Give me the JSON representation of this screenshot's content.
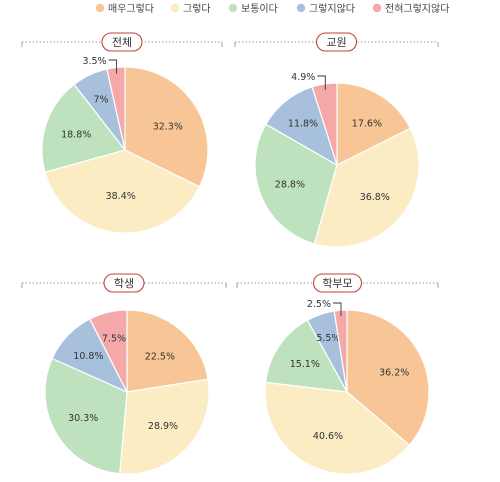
{
  "legend": [
    {
      "label": "매우그렇다",
      "color": "#f8c596"
    },
    {
      "label": "그렇다",
      "color": "#fcecc4"
    },
    {
      "label": "보통이다",
      "color": "#bee2bd"
    },
    {
      "label": "그렇지않다",
      "color": "#a7c0db"
    },
    {
      "label": "전혀그렇지않다",
      "color": "#f4a8a8"
    }
  ],
  "chart_data": [
    {
      "type": "pie",
      "title": "전체",
      "categories": [
        "매우그렇다",
        "그렇다",
        "보통이다",
        "그렇지않다",
        "전혀그렇지않다"
      ],
      "values": [
        32.3,
        38.4,
        18.8,
        7.0,
        3.5
      ],
      "labels": [
        "32.3%",
        "38.4%",
        "18.8%",
        "7%",
        "3.5%"
      ],
      "start_angle_deg": 0,
      "direction": "clockwise"
    },
    {
      "type": "pie",
      "title": "교원",
      "categories": [
        "매우그렇다",
        "그렇다",
        "보통이다",
        "그렇지않다",
        "전혀그렇지않다"
      ],
      "values": [
        17.6,
        36.8,
        28.8,
        11.8,
        4.9
      ],
      "labels": [
        "17.6%",
        "36.8%",
        "28.8%",
        "11.8%",
        "4.9%"
      ],
      "start_angle_deg": 0,
      "direction": "clockwise"
    },
    {
      "type": "pie",
      "title": "학생",
      "categories": [
        "매우그렇다",
        "그렇다",
        "보통이다",
        "그렇지않다",
        "전혀그렇지않다"
      ],
      "values": [
        22.5,
        28.9,
        30.3,
        10.8,
        7.5
      ],
      "labels": [
        "22.5%",
        "28.9%",
        "30.3%",
        "10.8%",
        "7.5%"
      ],
      "start_angle_deg": 0,
      "direction": "clockwise"
    },
    {
      "type": "pie",
      "title": "학부모",
      "categories": [
        "매우그렇다",
        "그렇다",
        "보통이다",
        "그렇지않다",
        "전혀그렇지않다"
      ],
      "values": [
        36.2,
        40.6,
        15.1,
        5.5,
        2.5
      ],
      "labels": [
        "36.2%",
        "40.6%",
        "15.1%",
        "5.5%",
        "2.5%"
      ],
      "start_angle_deg": 0,
      "direction": "clockwise"
    }
  ]
}
